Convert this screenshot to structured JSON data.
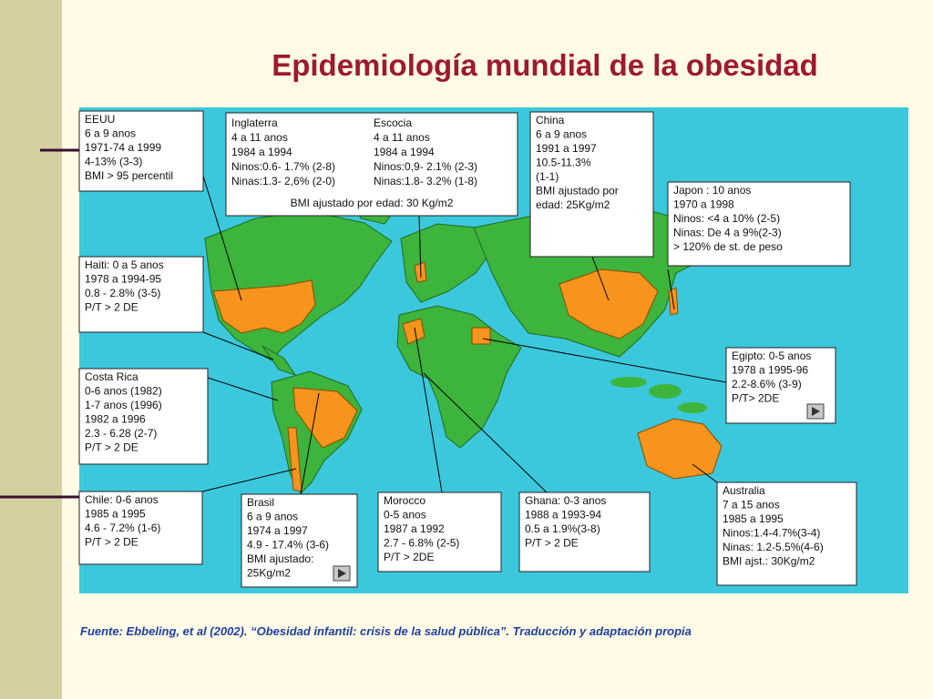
{
  "title": "Epidemiología mundial de la obesidad",
  "callouts": [
    {
      "lines": [
        "EEUU",
        "6 a 9 anos",
        "1971-74 a 1999",
        "4-13% (3-3)",
        "BMI > 95 percentil"
      ]
    },
    {
      "lines": [
        "China",
        "6 a 9 anos",
        "1991 a 1997",
        "10.5-11.3%",
        "(1-1)",
        "BMI ajustado por",
        "edad: 25Kg/m2"
      ]
    },
    {
      "lines": [
        "Japon : 10 anos",
        "1970 a 1998",
        "Ninos: <4 a 10% (2-5)",
        "Ninas: De 4 a 9%(2-3)",
        "> 120% de st.  de peso"
      ]
    },
    {
      "lines": [
        "Haiti: 0 a 5 anos",
        "1978 a 1994-95",
        "0.8 - 2.8% (3-5)",
        "P/T > 2 DE"
      ]
    },
    {
      "lines": [
        "Costa Rica",
        "0-6 anos (1982)",
        "1-7 anos (1996)",
        "1982 a 1996",
        "2.3 - 6.28 (2-7)",
        "P/T > 2 DE"
      ]
    },
    {
      "lines": [
        "Egipto: 0-5 anos",
        "1978 a 1995-96",
        "2.2-8.6% (3-9)",
        "P/T> 2DE"
      ]
    },
    {
      "lines": [
        "Chile: 0-6 anos",
        "1985 a 1995",
        "4.6 - 7.2% (1-6)",
        "P/T > 2 DE"
      ]
    },
    {
      "lines": [
        "Brasil",
        "6 a 9 anos",
        "1974 a 1997",
        "4.9 - 17.4% (3-6)",
        "BMI ajustado:",
        "25Kg/m2"
      ]
    },
    {
      "lines": [
        "Morocco",
        "0-5 anos",
        "1987 a 1992",
        "2.7 - 6.8% (2-5)",
        "P/T > 2DE"
      ]
    },
    {
      "lines": [
        "Ghana: 0-3 anos",
        "1988 a 1993-94",
        "0.5 a 1.9%(3-8)",
        "P/T > 2 DE"
      ]
    },
    {
      "lines": [
        "Australia",
        " 7 a 15 anos",
        "1985 a 1995",
        "Ninos:1.4-4.7%(3-4)",
        "Ninas: 1.2-5.5%(4-6)",
        "BMI ajst.: 30Kg/m2"
      ]
    }
  ],
  "uk_box": {
    "columns": [
      [
        "Inglaterra",
        "4 a 11 anos",
        "1984 a 1994",
        "Ninos:0.6- 1.7% (2-8)",
        "Ninas:1.3- 2,6% (2-0)"
      ],
      [
        "Escocia",
        "4 a 11 anos",
        "1984 a 1994",
        "Ninos:0,9- 2.1% (2-3)",
        "Ninas:1.8- 3.2% (1-8)"
      ]
    ],
    "bottom": "BMI ajustado por edad: 30 Kg/m2"
  },
  "footer": "Fuente: Ebbeling, et al (2002). “Obesidad infantil:  crisis de la salud pública”. Traducción y adaptación propia"
}
